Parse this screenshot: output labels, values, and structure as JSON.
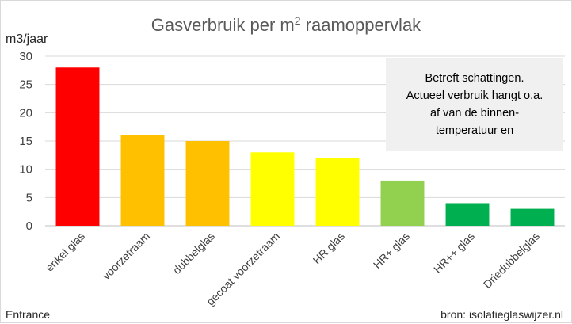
{
  "chart_data": {
    "type": "bar",
    "title_main": "Gasverbruik per m",
    "title_sup": "2",
    "title_rest": " raamoppervlak",
    "ylabel": "m3/jaar",
    "xlabel": "",
    "ylim": [
      0,
      30
    ],
    "yticks": [
      0,
      5,
      10,
      15,
      20,
      25,
      30
    ],
    "grid": true,
    "categories": [
      "enkel glas",
      "voorzetraam",
      "dubbelglas",
      "gecoat voorzetraam",
      "HR glas",
      "HR+ glas",
      "HR++ glas",
      "Driedubbelglas"
    ],
    "values": [
      28,
      16,
      15,
      13,
      12,
      8,
      4,
      3
    ],
    "colors": [
      "#ff0000",
      "#ffc000",
      "#ffc000",
      "#ffff00",
      "#ffff00",
      "#92d050",
      "#00b050",
      "#00b050"
    ],
    "annotation": {
      "lines": [
        "Betreft schattingen.",
        "Actueel verbruik hangt o.a.",
        "af van de binnen-",
        "temperatuur en"
      ]
    }
  },
  "footer": {
    "left": "Entrance",
    "right": "bron: isolatieglaswijzer.nl"
  }
}
